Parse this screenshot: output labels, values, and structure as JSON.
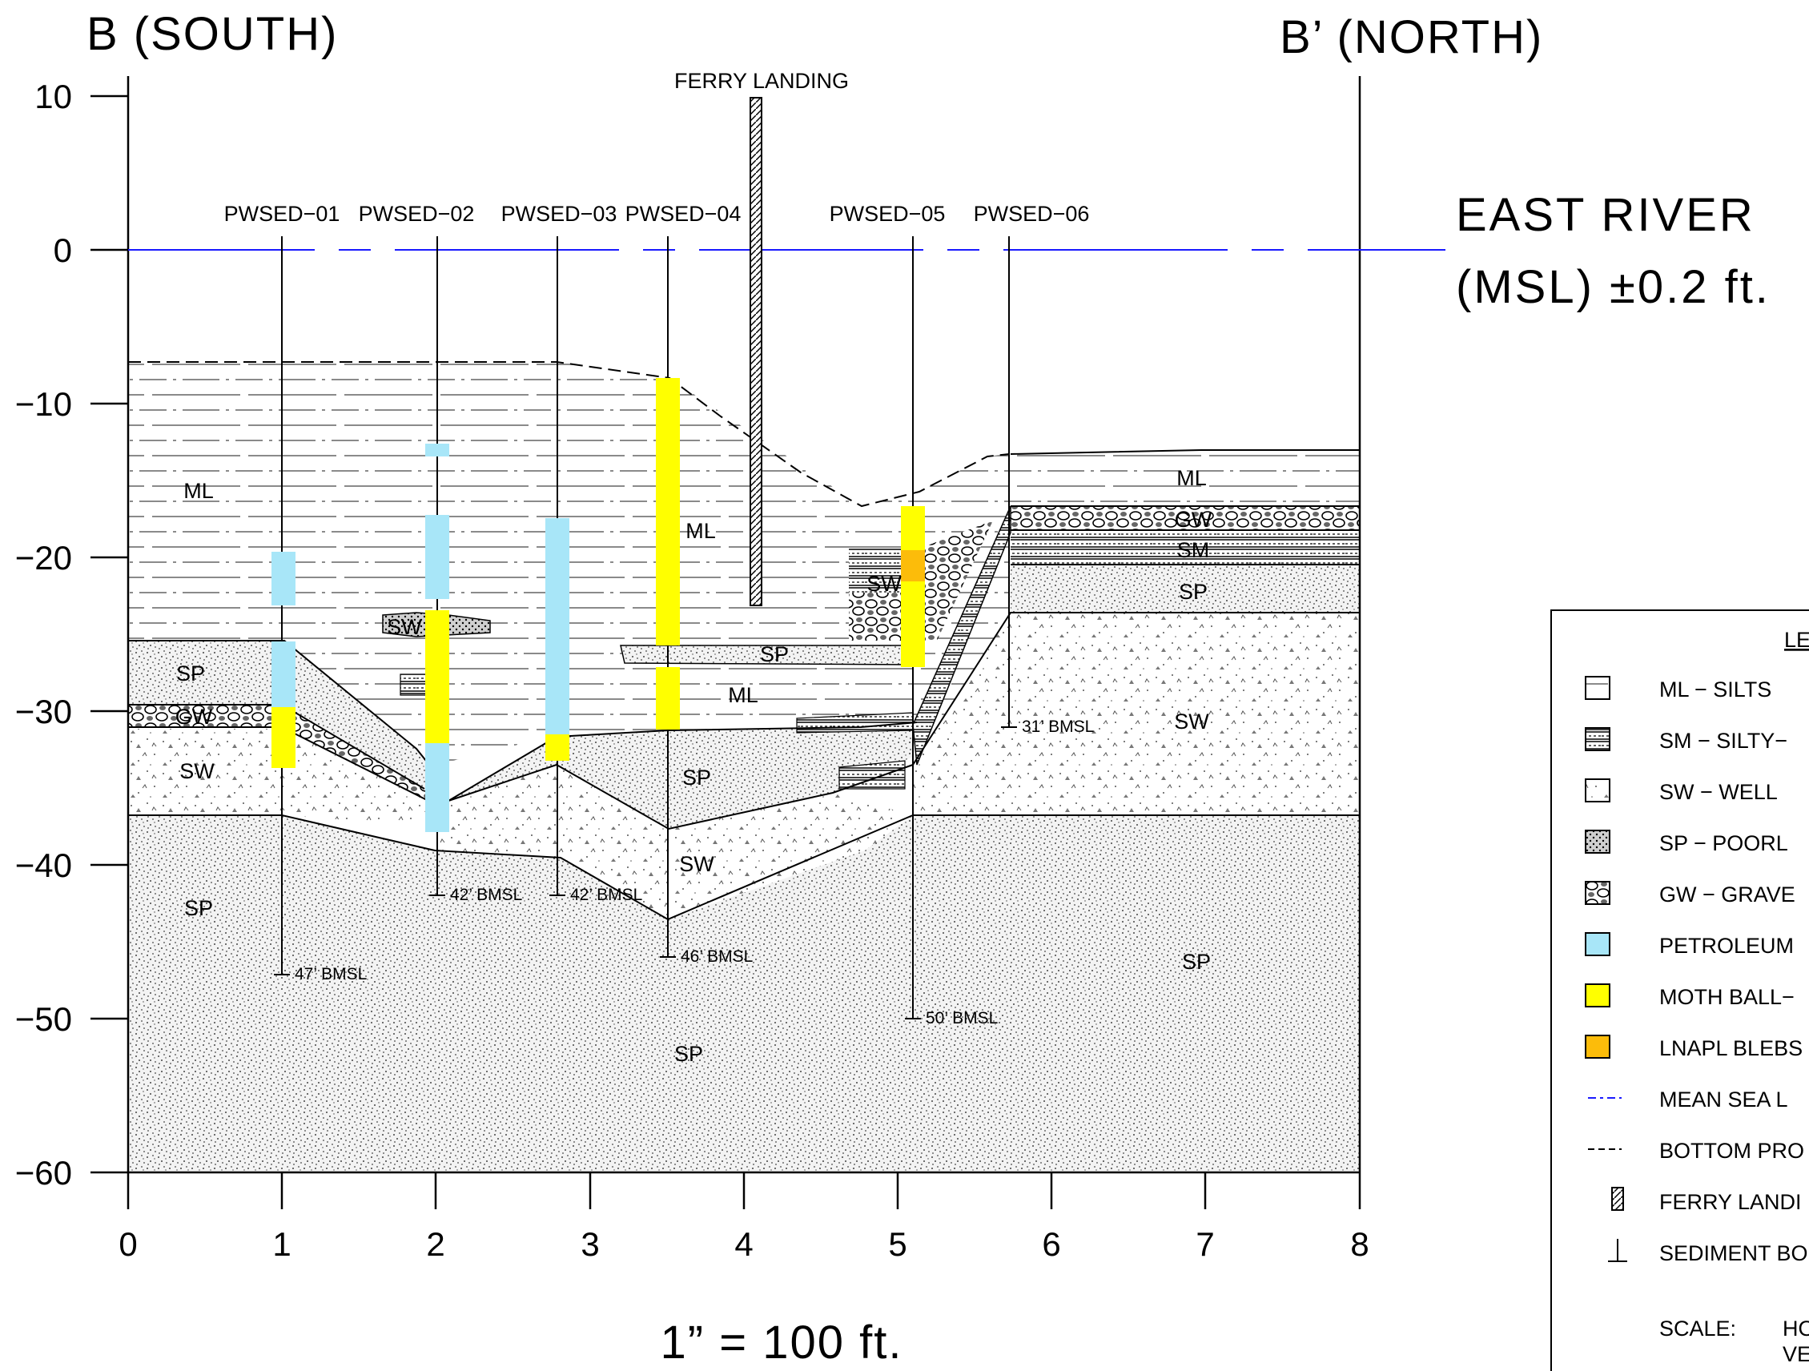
{
  "titles": {
    "south": "B (SOUTH)",
    "north": "B’ (NORTH)",
    "river_line1": "EAST RIVER",
    "river_line2": "(MSL) ±0.2 ft.",
    "scale": "1” = 100 ft.",
    "ferry": "FERRY LANDING"
  },
  "y_ticks": [
    "10",
    "0",
    "−10",
    "−20",
    "−30",
    "−40",
    "−50",
    "−60"
  ],
  "x_ticks": [
    "0",
    "1",
    "2",
    "3",
    "4",
    "5",
    "6",
    "7",
    "8"
  ],
  "borings": [
    "PWSED−01",
    "PWSED−02",
    "PWSED−03",
    "PWSED−04",
    "PWSED−05",
    "PWSED−06"
  ],
  "depth_labels": [
    "47’ BMSL",
    "42’ BMSL",
    "42’ BMSL",
    "46’ BMSL",
    "50’ BMSL",
    "31’ BMSL"
  ],
  "soil_labels": [
    "ML",
    "ML",
    "ML",
    "ML",
    "SP",
    "GW",
    "SW",
    "SW",
    "SW",
    "SW",
    "SW",
    "SP",
    "SP",
    "SP",
    "SP",
    "SP",
    "GW",
    "SM",
    "SP"
  ],
  "legend": {
    "items": [
      "ML − SILTS",
      "SM − SILTY−",
      "SW − WELL",
      "SP − POORL",
      "GW − GRAVE",
      "PETROLEUM",
      "MOTH BALL−",
      "LNAPL BLEBS",
      "MEAN SEA L",
      "BOTTOM PRO",
      "FERRY LANDI",
      "SEDIMENT BO"
    ],
    "header": "LE",
    "scale_label": "SCALE:",
    "scale_h": "HO",
    "scale_v": "VE"
  },
  "colors": {
    "petroleum": "#a8e6f8",
    "mothball": "#ffff00",
    "lnapl": "#fcbc0a",
    "msl": "#1a1aff"
  }
}
